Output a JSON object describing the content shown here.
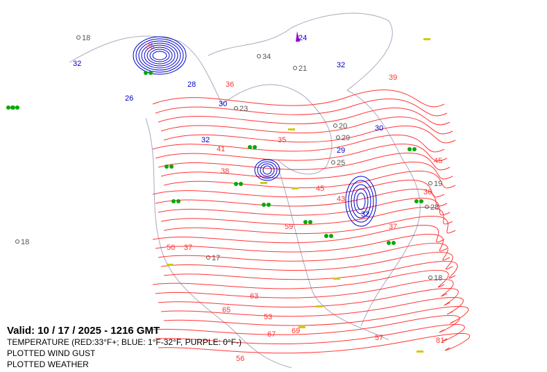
{
  "legend": {
    "valid": "Valid: 10 / 17 / 2025  -  1216 GMT",
    "temperature": "TEMPERATURE (RED:33°F+; BLUE: 1°F-32°F, PURPLE: 0°F-)",
    "wind_gust": "PLOTTED WIND GUST",
    "weather": "PLOTTED WEATHER"
  },
  "colors": {
    "warm": "#ff3333",
    "cold": "#0000cc",
    "very_cold": "#9900cc",
    "coast": "#a8a8c0",
    "station": "#555555",
    "rain": "#00aa00",
    "wind": "#cccc00"
  },
  "labels": {
    "warm": [
      "35",
      "36",
      "38",
      "41",
      "45",
      "39",
      "36",
      "45",
      "43",
      "37",
      "50",
      "59",
      "63",
      "65",
      "69",
      "67",
      "81",
      "57",
      "37",
      "35",
      "53",
      "56"
    ],
    "cold": [
      "32",
      "28",
      "26",
      "30",
      "32",
      "30",
      "32",
      "24",
      "29",
      "32"
    ],
    "station": [
      "18",
      "34",
      "23",
      "21",
      "20",
      "29",
      "25",
      "18",
      "19",
      "17",
      "18",
      "28"
    ]
  }
}
